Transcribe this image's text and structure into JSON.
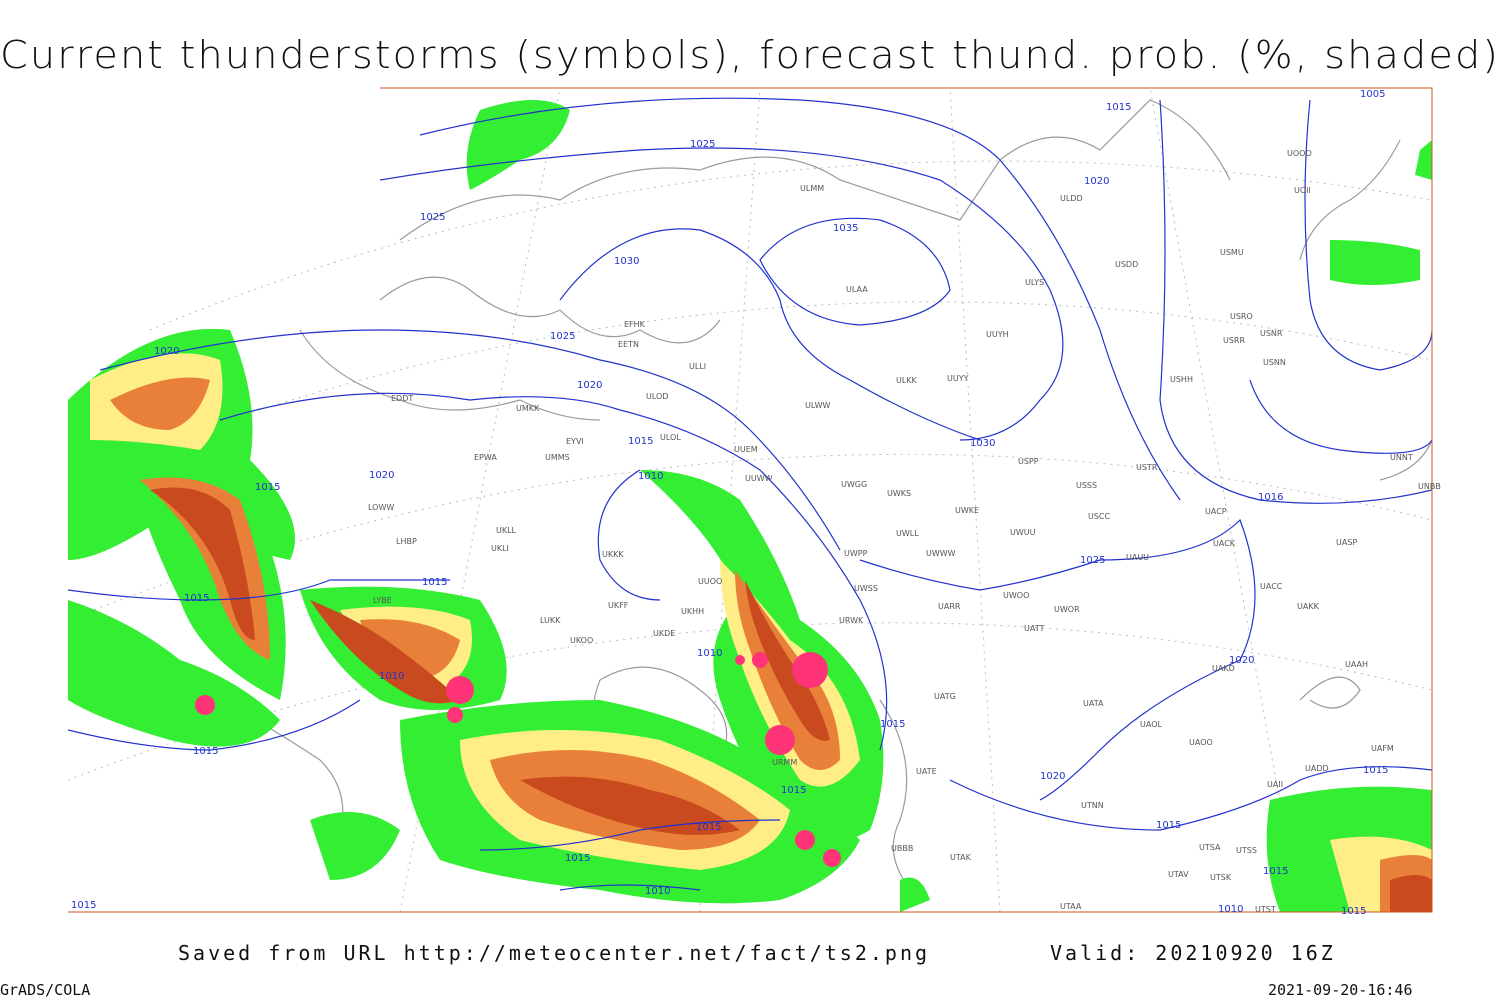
{
  "header": {
    "title": "Current thunderstorms (symbols), forecast thund. prob. (%, shaded)"
  },
  "footer": {
    "source": "Saved from URL http://meteocenter.net/fact/ts2.png",
    "valid": "Valid: 20210920 16Z",
    "software": "GrADS/COLA",
    "timestamp": "2021-09-20-16:46"
  },
  "map": {
    "contour_labels": [
      "1015",
      "1005",
      "1025",
      "1025",
      "1020",
      "1035",
      "1030",
      "1025",
      "1020",
      "1020",
      "1015",
      "1030",
      "1020",
      "1015",
      "1010",
      "1016",
      "1025",
      "1015",
      "1015",
      "1010",
      "1010",
      "1015",
      "1015",
      "1020",
      "1020",
      "1015",
      "1015",
      "1015",
      "1015",
      "1015",
      "1015",
      "1010",
      "1010",
      "1015",
      "1015"
    ],
    "stations": [
      "ULMM",
      "ULDD",
      "USDD",
      "USMU",
      "ULAA",
      "ULYS",
      "UUYH",
      "USRO",
      "USNR",
      "USRR",
      "USNN",
      "USHH",
      "ULKK",
      "UUYY",
      "EFHK",
      "EETN",
      "ULLI",
      "ULOD",
      "EDDT",
      "UMKK",
      "ULWW",
      "UUEM",
      "ULOL",
      "EYVI",
      "EPWA",
      "UMMS",
      "USPP",
      "USTR",
      "UUWW",
      "UWGG",
      "UWKS",
      "USSS",
      "LOWW",
      "UWKE",
      "UWUU",
      "USCC",
      "UACP",
      "UKLL",
      "LHBP",
      "UKLI",
      "UWLL",
      "UWWW",
      "UACK",
      "UASP",
      "UAUU",
      "UWPP",
      "UKKK",
      "UUOO",
      "UACC",
      "UWSS",
      "UAKK",
      "LYBE",
      "LUKK",
      "UKFF",
      "UKOO",
      "UKHH",
      "UKDE",
      "UARR",
      "UWOO",
      "UWOR",
      "URWK",
      "UATT",
      "UAAH",
      "UAKD",
      "UATG",
      "UATA",
      "UAOL",
      "UAOO",
      "UATE",
      "UTNN",
      "UTAK",
      "UBBB",
      "UTAA",
      "UADD",
      "UAFM",
      "UAII",
      "UTSA",
      "UTSS",
      "UTAV",
      "UTSK",
      "UTST",
      "UOOO",
      "UOII",
      "UNNT",
      "UNBB",
      "URMM"
    ]
  }
}
